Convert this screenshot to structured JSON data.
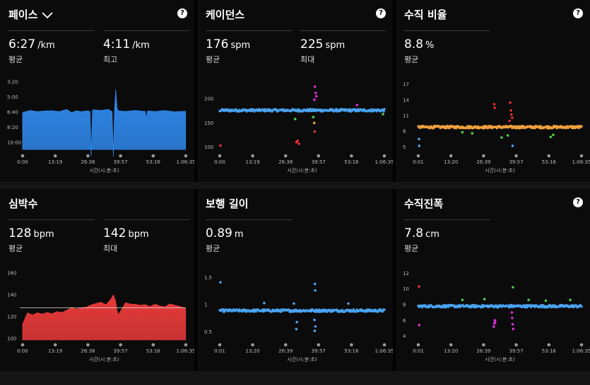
{
  "panels": [
    {
      "id": "pace",
      "title": "페이스",
      "has_chevron": true,
      "has_help": true,
      "stats": [
        {
          "value": "6:27",
          "unit": "/km",
          "label": "평균"
        },
        {
          "value": "4:11",
          "unit": "/km",
          "label": "최고"
        }
      ]
    },
    {
      "id": "cadence",
      "title": "케이던스",
      "has_chevron": false,
      "has_help": true,
      "stats": [
        {
          "value": "176",
          "unit": "spm",
          "label": "평균"
        },
        {
          "value": "225",
          "unit": "spm",
          "label": "최대"
        }
      ]
    },
    {
      "id": "vratio",
      "title": "수직 비율",
      "has_chevron": false,
      "has_help": true,
      "stats": [
        {
          "value": "8.8",
          "unit": "%",
          "label": "평균"
        }
      ]
    },
    {
      "id": "hr",
      "title": "심박수",
      "has_chevron": false,
      "has_help": false,
      "stats": [
        {
          "value": "128",
          "unit": "bpm",
          "label": "평균"
        },
        {
          "value": "142",
          "unit": "bpm",
          "label": "최대"
        }
      ]
    },
    {
      "id": "stride",
      "title": "보행 길이",
      "has_chevron": false,
      "has_help": false,
      "stats": [
        {
          "value": "0.89",
          "unit": "m",
          "label": "평균"
        }
      ]
    },
    {
      "id": "vosc",
      "title": "수직진폭",
      "has_chevron": false,
      "has_help": true,
      "stats": [
        {
          "value": "7.8",
          "unit": "cm",
          "label": "평균"
        }
      ]
    }
  ],
  "help_glyph": "?",
  "chart_data": [
    {
      "panel": "pace",
      "type": "area",
      "xlabel": "시간(시:분:초)",
      "x_ticks": [
        "0:00",
        "13:19",
        "26:38",
        "39:57",
        "53:16",
        "1:06:35"
      ],
      "y_ticks": [
        "3:20",
        "5:00",
        "6:40",
        "8:20",
        "10:00"
      ],
      "y_inverted": true,
      "color": "#2e86e8",
      "x_minutes": [
        0,
        3,
        6,
        9,
        12,
        15,
        18,
        20,
        22,
        24,
        26,
        27.5,
        28,
        28.5,
        29,
        32,
        35,
        36.5,
        37,
        37.5,
        38,
        38.5,
        39,
        42,
        46,
        50,
        50.5,
        51,
        54,
        58,
        62,
        66.5
      ],
      "values_min_per_km": [
        6.7,
        6.5,
        6.6,
        6.5,
        6.5,
        6.6,
        6.4,
        6.7,
        6.5,
        6.6,
        6.5,
        6.6,
        11.5,
        6.5,
        6.4,
        6.5,
        6.4,
        6.6,
        11.5,
        6.4,
        4.2,
        6.2,
        6.5,
        6.6,
        6.5,
        6.6,
        7.3,
        6.5,
        6.6,
        6.5,
        6.6,
        6.6
      ]
    },
    {
      "panel": "cadence",
      "type": "scatter",
      "xlabel": "시간(시:분:초)",
      "x_ticks": [
        "0:00",
        "13:19",
        "26:38",
        "39:57",
        "53:16",
        "1:06:35"
      ],
      "y_ticks": [
        "100",
        "150",
        "200"
      ],
      "ylim": [
        95,
        235
      ],
      "base_color": "#4aa3f0",
      "baseline": 176,
      "outliers": [
        {
          "x": 0.3,
          "y": 103,
          "color": "#e83030"
        },
        {
          "x": 31,
          "y": 110,
          "color": "#e83030"
        },
        {
          "x": 32,
          "y": 107,
          "color": "#e83030"
        },
        {
          "x": 31.5,
          "y": 113,
          "color": "#e83030"
        },
        {
          "x": 38.5,
          "y": 225,
          "color": "#d830d8"
        },
        {
          "x": 38.8,
          "y": 212,
          "color": "#d830d8"
        },
        {
          "x": 39.1,
          "y": 205,
          "color": "#d830d8"
        },
        {
          "x": 38.3,
          "y": 198,
          "color": "#d830d8"
        },
        {
          "x": 55.5,
          "y": 187,
          "color": "#d830d8"
        },
        {
          "x": 38.4,
          "y": 132,
          "color": "#e83030"
        },
        {
          "x": 38.2,
          "y": 150,
          "color": "#e8a030"
        },
        {
          "x": 30.5,
          "y": 158,
          "color": "#4ccf4c"
        },
        {
          "x": 37.8,
          "y": 162,
          "color": "#4ccf4c"
        },
        {
          "x": 66,
          "y": 168,
          "color": "#4ccf4c"
        }
      ]
    },
    {
      "panel": "vratio",
      "type": "scatter",
      "xlabel": "시간(시:분:초)",
      "x_ticks": [
        "0:01",
        "13:20",
        "26:39",
        "39:57",
        "53:16",
        "1:06:35"
      ],
      "y_ticks": [
        "5",
        "8",
        "11",
        "14",
        "17"
      ],
      "ylim": [
        4.5,
        17.5
      ],
      "base_color": "#f0a03c",
      "baseline": 8.8,
      "outliers": [
        {
          "x": 0.3,
          "y": 6.5,
          "color": "#4aa3f0"
        },
        {
          "x": 0.4,
          "y": 5.2,
          "color": "#4aa3f0"
        },
        {
          "x": 31,
          "y": 13.2,
          "color": "#e83030"
        },
        {
          "x": 31.2,
          "y": 12.5,
          "color": "#e83030"
        },
        {
          "x": 37.5,
          "y": 13.5,
          "color": "#e83030"
        },
        {
          "x": 37.8,
          "y": 12.0,
          "color": "#e83030"
        },
        {
          "x": 38.0,
          "y": 11.2,
          "color": "#e83030"
        },
        {
          "x": 38.3,
          "y": 10.6,
          "color": "#e83030"
        },
        {
          "x": 37.2,
          "y": 10.0,
          "color": "#e83030"
        },
        {
          "x": 34,
          "y": 6.8,
          "color": "#4ccf4c"
        },
        {
          "x": 38.5,
          "y": 5.2,
          "color": "#4aa3f0"
        },
        {
          "x": 36.5,
          "y": 7.2,
          "color": "#4ccf4c"
        },
        {
          "x": 18,
          "y": 7.8,
          "color": "#4ccf4c"
        },
        {
          "x": 55,
          "y": 7.3,
          "color": "#4ccf4c"
        },
        {
          "x": 22,
          "y": 7.6,
          "color": "#4ccf4c"
        },
        {
          "x": 54,
          "y": 6.9,
          "color": "#4ccf4c"
        }
      ]
    },
    {
      "panel": "hr",
      "type": "area",
      "xlabel": "시간(시:분:초)",
      "x_ticks": [
        "0:00",
        "13:19",
        "26:38",
        "39:57",
        "53:16",
        "1:06:35"
      ],
      "y_ticks": [
        "100",
        "120",
        "140",
        "160"
      ],
      "ylim": [
        100,
        162
      ],
      "avg_line": 128,
      "color": "#e83a3a",
      "x_minutes": [
        0,
        2,
        4,
        6,
        8,
        10,
        12,
        14,
        16,
        18,
        20,
        22,
        24,
        26,
        28,
        30,
        32,
        34,
        36,
        37,
        38,
        38.5,
        39,
        40,
        42,
        44,
        46,
        48,
        50,
        52,
        54,
        56,
        58,
        60,
        62,
        64,
        66.5
      ],
      "values": [
        113,
        124,
        121,
        123,
        122,
        124,
        123,
        125,
        124,
        126,
        128,
        127,
        128,
        129,
        131,
        132,
        133,
        131,
        136,
        140,
        134,
        126,
        121,
        125,
        133,
        132,
        131,
        130,
        131,
        129,
        132,
        130,
        129,
        131,
        130,
        129,
        128
      ]
    },
    {
      "panel": "stride",
      "type": "scatter",
      "xlabel": "시간(시:분:초)",
      "x_ticks": [
        "0:01",
        "13:20",
        "26:39",
        "39:57",
        "53:16",
        "1:06:35"
      ],
      "y_ticks": [
        "0.5",
        "1",
        "1.5"
      ],
      "ylim": [
        0.38,
        1.62
      ],
      "base_color": "#4aa3f0",
      "baseline": 0.89,
      "outliers": [
        {
          "x": 0.3,
          "y": 1.41,
          "color": "#4aa3f0"
        },
        {
          "x": 38.5,
          "y": 1.38,
          "color": "#4aa3f0"
        },
        {
          "x": 38.6,
          "y": 1.26,
          "color": "#4aa3f0"
        },
        {
          "x": 38.4,
          "y": 0.52,
          "color": "#4aa3f0"
        },
        {
          "x": 38.7,
          "y": 0.6,
          "color": "#4aa3f0"
        },
        {
          "x": 38.3,
          "y": 0.72,
          "color": "#4aa3f0"
        },
        {
          "x": 31,
          "y": 0.55,
          "color": "#4aa3f0"
        },
        {
          "x": 31.2,
          "y": 0.68,
          "color": "#4aa3f0"
        },
        {
          "x": 30,
          "y": 1.02,
          "color": "#4aa3f0"
        },
        {
          "x": 18,
          "y": 1.03,
          "color": "#4aa3f0"
        },
        {
          "x": 52,
          "y": 1.02,
          "color": "#4aa3f0"
        }
      ]
    },
    {
      "panel": "vosc",
      "type": "scatter",
      "xlabel": "시간(시:분:초)",
      "x_ticks": [
        "0:01",
        "13:20",
        "26:39",
        "39:57",
        "53:16",
        "1:06:35"
      ],
      "y_ticks": [
        "4",
        "6",
        "8",
        "10",
        "12"
      ],
      "ylim": [
        3.7,
        12.3
      ],
      "base_color": "#4aa3f0",
      "baseline": 7.8,
      "outliers": [
        {
          "x": 0.3,
          "y": 10.3,
          "color": "#e83030"
        },
        {
          "x": 0.4,
          "y": 5.4,
          "color": "#d830d8"
        },
        {
          "x": 31,
          "y": 5.6,
          "color": "#d830d8"
        },
        {
          "x": 31.2,
          "y": 6.0,
          "color": "#d830d8"
        },
        {
          "x": 30.8,
          "y": 5.2,
          "color": "#d830d8"
        },
        {
          "x": 31.4,
          "y": 5.8,
          "color": "#d830d8"
        },
        {
          "x": 38.5,
          "y": 5.5,
          "color": "#d830d8"
        },
        {
          "x": 38.7,
          "y": 4.9,
          "color": "#d830d8"
        },
        {
          "x": 38.3,
          "y": 6.3,
          "color": "#d830d8"
        },
        {
          "x": 38.6,
          "y": 10.2,
          "color": "#4ccf4c"
        },
        {
          "x": 38.2,
          "y": 7.0,
          "color": "#d830d8"
        },
        {
          "x": 18,
          "y": 8.6,
          "color": "#4ccf4c"
        },
        {
          "x": 27,
          "y": 8.7,
          "color": "#4ccf4c"
        },
        {
          "x": 45,
          "y": 8.6,
          "color": "#4ccf4c"
        },
        {
          "x": 52,
          "y": 8.5,
          "color": "#4ccf4c"
        },
        {
          "x": 62,
          "y": 8.6,
          "color": "#4ccf4c"
        }
      ]
    }
  ]
}
